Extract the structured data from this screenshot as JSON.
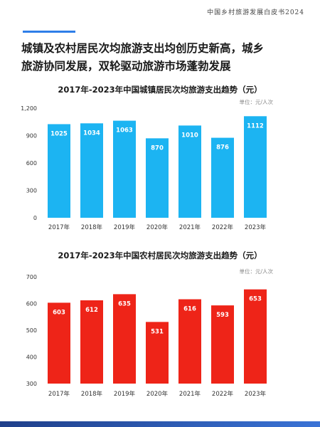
{
  "header": {
    "doc_title": "中国乡村旅游发展白皮书2024"
  },
  "headline": {
    "line1": "城镇及农村居民次均旅游支出均创历史新高，城乡",
    "line2": "旅游协同发展，双轮驱动旅游市场蓬勃发展"
  },
  "colors": {
    "accent": "#2e7ee8",
    "urban": "#1cb4f2",
    "rural": "#ee2418",
    "bottom_bar": "#2a5bb8"
  },
  "chart_data": [
    {
      "type": "bar",
      "title": "2017年-2023年中国城镇居民次均旅游支出趋势（元）",
      "unit": "单位：元/人次",
      "categories": [
        "2017年",
        "2018年",
        "2019年",
        "2020年",
        "2021年",
        "2022年",
        "2023年"
      ],
      "values": [
        1025,
        1034,
        1063,
        870,
        1010,
        876,
        1112
      ],
      "yticks": [
        "0",
        "300",
        "600",
        "900",
        "1,200"
      ],
      "ylim": [
        0,
        1200
      ],
      "grid": false,
      "color": "#1cb4f2"
    },
    {
      "type": "bar",
      "title": "2017年-2023年中国农村居民次均旅游支出趋势（元）",
      "unit": "单位：元/人次",
      "categories": [
        "2017年",
        "2018年",
        "2019年",
        "2020年",
        "2021年",
        "2022年",
        "2023年"
      ],
      "values": [
        603,
        612,
        635,
        531,
        616,
        593,
        653
      ],
      "yticks": [
        "300",
        "400",
        "500",
        "600",
        "700"
      ],
      "ylim": [
        300,
        700
      ],
      "grid": false,
      "color": "#ee2418"
    }
  ]
}
